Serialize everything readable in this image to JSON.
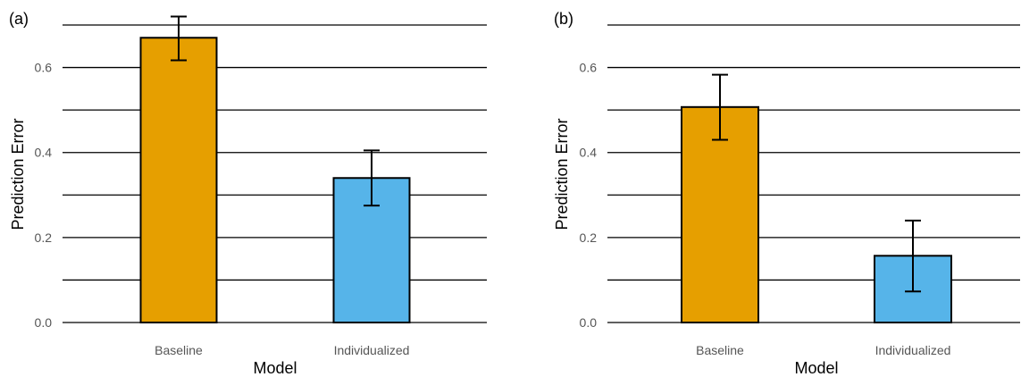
{
  "chart_data": [
    {
      "type": "bar",
      "panel_label": "(a)",
      "xlabel": "Model",
      "ylabel": "Prediction Error",
      "categories": [
        "Baseline",
        "Individualized"
      ],
      "values": [
        0.67,
        0.34
      ],
      "error_low": [
        0.617,
        0.275
      ],
      "error_high": [
        0.72,
        0.405
      ],
      "ylim": [
        0,
        0.7
      ],
      "y_ticks": [
        0.0,
        0.2,
        0.4,
        0.6
      ],
      "y_tick_labels": [
        "0.0",
        "0.2",
        "0.4",
        "0.6"
      ],
      "grid_lines": [
        0.0,
        0.1,
        0.2,
        0.3,
        0.4,
        0.5,
        0.6,
        0.7
      ],
      "colors": [
        "#E69F00",
        "#56B4E9"
      ],
      "grid": true
    },
    {
      "type": "bar",
      "panel_label": "(b)",
      "xlabel": "Model",
      "ylabel": "Prediction Error",
      "categories": [
        "Baseline",
        "Individualized"
      ],
      "values": [
        0.507,
        0.157
      ],
      "error_low": [
        0.43,
        0.073
      ],
      "error_high": [
        0.583,
        0.24
      ],
      "ylim": [
        0,
        0.7
      ],
      "y_ticks": [
        0.0,
        0.2,
        0.4,
        0.6
      ],
      "y_tick_labels": [
        "0.0",
        "0.2",
        "0.4",
        "0.6"
      ],
      "grid_lines": [
        0.0,
        0.1,
        0.2,
        0.3,
        0.4,
        0.5,
        0.6,
        0.7
      ],
      "colors": [
        "#E69F00",
        "#56B4E9"
      ],
      "grid": true
    }
  ]
}
